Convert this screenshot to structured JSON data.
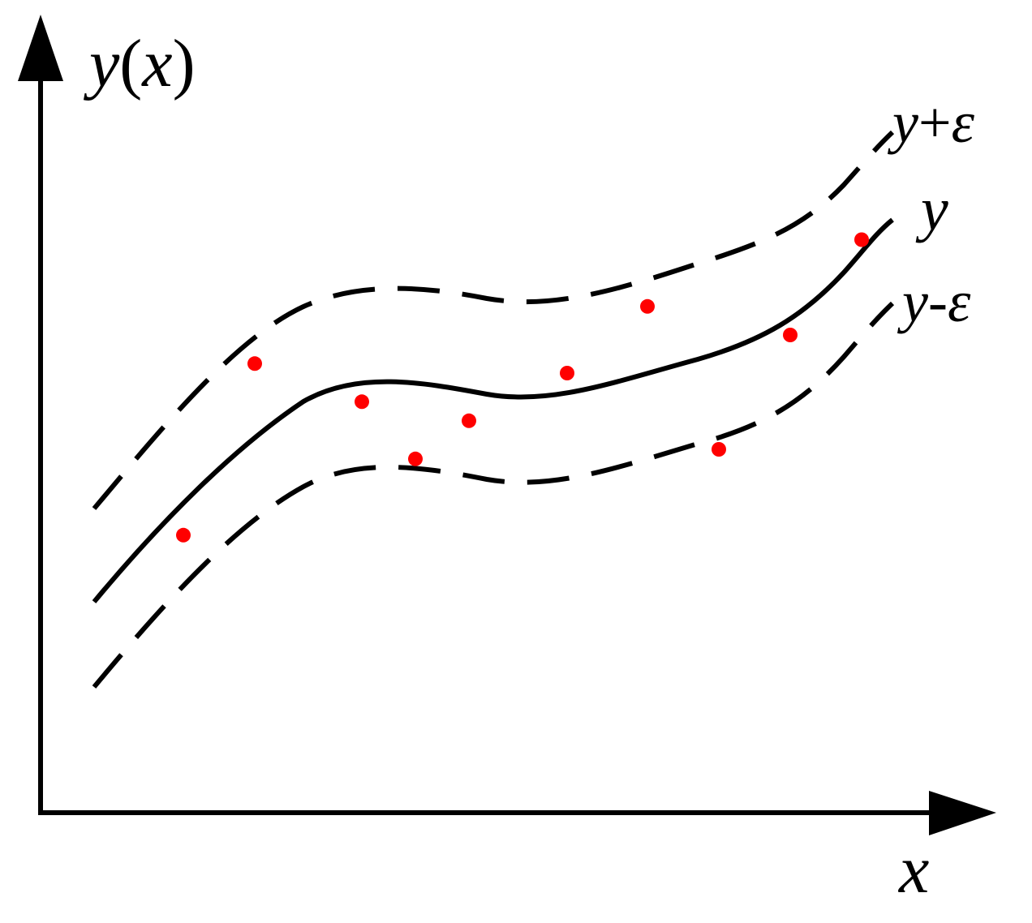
{
  "labels": {
    "y_axis": {
      "var": "y",
      "open": "(",
      "arg": "x",
      "close": ")"
    },
    "x_axis": "x",
    "upper_curve": {
      "var": "y",
      "op": "+",
      "eps": "ε"
    },
    "center_curve": "y",
    "lower_curve": {
      "var": "y",
      "op": "-",
      "eps": "ε"
    }
  },
  "colors": {
    "axis": "#000000",
    "curve": "#000000",
    "points": "#ff0000"
  },
  "chart_data": {
    "type": "scatter",
    "curve": [
      [
        0,
        0
      ],
      [
        5,
        5
      ],
      [
        10,
        8.8
      ],
      [
        15,
        9
      ],
      [
        20,
        8.5
      ],
      [
        25,
        8.7
      ],
      [
        30,
        10
      ],
      [
        35,
        11.5
      ],
      [
        40,
        14
      ],
      [
        45,
        20
      ]
    ],
    "epsilon": 6,
    "points": [
      [
        5,
        3.5
      ],
      [
        9,
        12.5
      ],
      [
        15,
        10.5
      ],
      [
        18,
        7.5
      ],
      [
        21,
        9.5
      ],
      [
        26.5,
        12
      ],
      [
        31,
        15.5
      ],
      [
        35,
        8
      ],
      [
        39,
        14
      ],
      [
        43,
        19
      ]
    ]
  }
}
